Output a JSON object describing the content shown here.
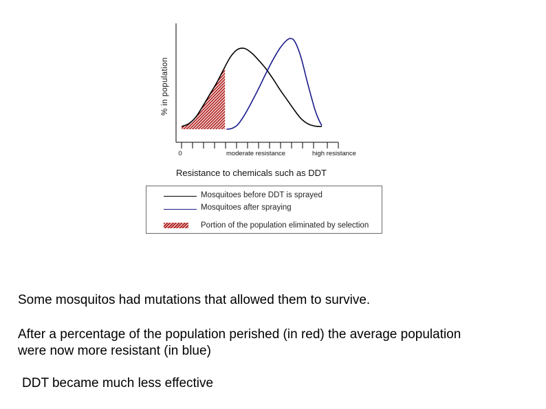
{
  "chart_data": {
    "type": "line",
    "title": "",
    "ylabel": "% in population",
    "xlabel": "Resistance to chemicals such as DDT",
    "xlim": [
      0,
      10
    ],
    "ylim": [
      0,
      1
    ],
    "tick_labels": [
      {
        "x": 0,
        "label": "0"
      },
      {
        "x": 4.5,
        "label": "moderate resistance"
      },
      {
        "x": 9.3,
        "label": "high resistance"
      }
    ],
    "series": [
      {
        "name": "Mosquitoes before DDT is sprayed",
        "color": "#000000",
        "points": [
          [
            0,
            0.03
          ],
          [
            0.5,
            0.06
          ],
          [
            1,
            0.13
          ],
          [
            1.5,
            0.25
          ],
          [
            2,
            0.38
          ],
          [
            2.5,
            0.51
          ],
          [
            3,
            0.66
          ],
          [
            3.5,
            0.8
          ],
          [
            4,
            0.88
          ],
          [
            4.5,
            0.89
          ],
          [
            5,
            0.84
          ],
          [
            5.5,
            0.76
          ],
          [
            6,
            0.67
          ],
          [
            6.5,
            0.56
          ],
          [
            7,
            0.44
          ],
          [
            7.5,
            0.33
          ],
          [
            8,
            0.22
          ],
          [
            8.5,
            0.12
          ],
          [
            9,
            0.06
          ],
          [
            9.5,
            0.035
          ],
          [
            10,
            0.03
          ]
        ]
      },
      {
        "name": "Mosquitoes after spraying",
        "color": "#1a1a8c",
        "points": [
          [
            3.2,
            0.0
          ],
          [
            3.6,
            0.01
          ],
          [
            4,
            0.05
          ],
          [
            4.5,
            0.16
          ],
          [
            5,
            0.3
          ],
          [
            5.5,
            0.45
          ],
          [
            6,
            0.61
          ],
          [
            6.5,
            0.76
          ],
          [
            7,
            0.89
          ],
          [
            7.5,
            0.98
          ],
          [
            7.8,
            1.0
          ],
          [
            8.1,
            0.96
          ],
          [
            8.5,
            0.8
          ],
          [
            9,
            0.5
          ],
          [
            9.5,
            0.22
          ],
          [
            9.8,
            0.1
          ],
          [
            10,
            0.04
          ]
        ]
      }
    ],
    "shaded_region": {
      "name": "Portion of the population eliminated by selection",
      "color": "#b22222",
      "x_range": [
        0,
        3.1
      ]
    }
  },
  "legend": {
    "items": [
      {
        "label": "Mosquitoes before DDT is sprayed",
        "color": "#000000",
        "kind": "line"
      },
      {
        "label": "Mosquitoes after spraying",
        "color": "#1a1a8c",
        "kind": "line"
      },
      {
        "label": "Portion of the population eliminated by selection",
        "color": "#b22222",
        "kind": "hatch"
      }
    ]
  },
  "captions": [
    "Some mosquitos had mutations that allowed them to survive.",
    "After a percentage of the population perished (in red) the average population",
    "were now more resistant (in blue)",
    "DDT became much less effective"
  ]
}
